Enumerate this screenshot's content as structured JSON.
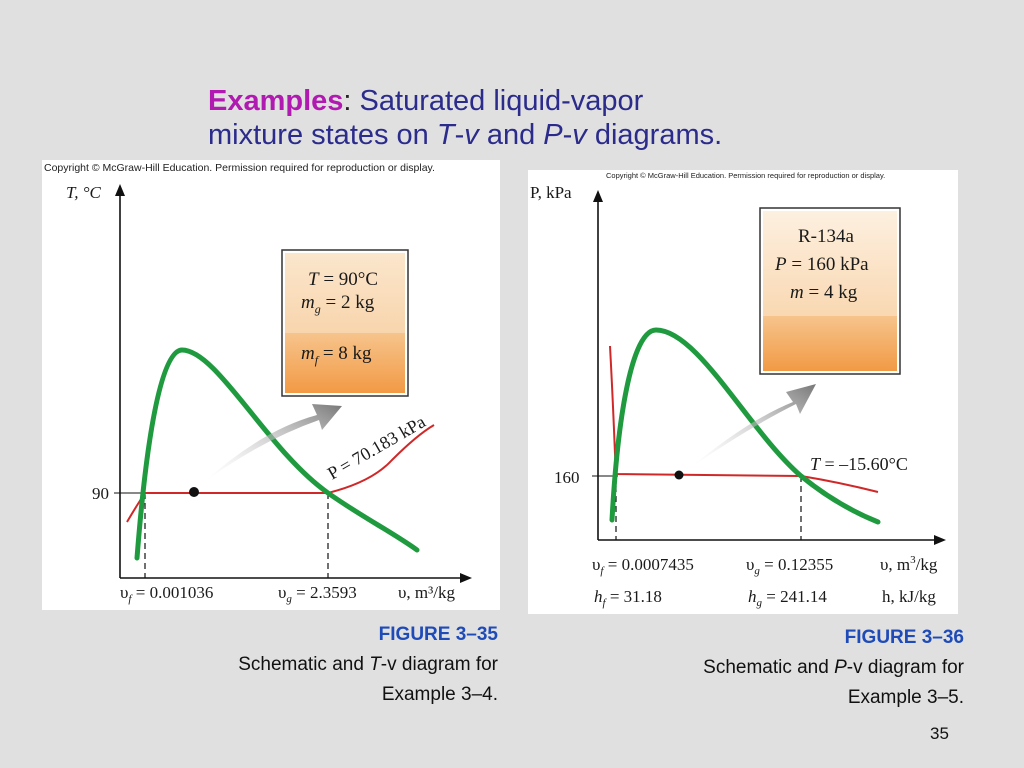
{
  "slide": {
    "title_keyword": "Examples",
    "title_colon": ":",
    "title_line1_rest": " Saturated liquid-vapor",
    "title_line2_a": "mixture states on ",
    "title_line2_T": "T",
    "title_line2_dash1": "-",
    "title_line2_v1": "v",
    "title_line2_b": " and ",
    "title_line2_P": "P",
    "title_line2_dash2": "-",
    "title_line2_v2": "v",
    "title_line2_c": " diagrams.",
    "page_number": "35"
  },
  "figure_left": {
    "copyright": "Copyright © McGraw-Hill Education. Permission required for reproduction or display.",
    "y_axis_label": "T, °C",
    "x_axis_label": "υ, m³/kg",
    "y_tick": "90",
    "box_T": "T = 90°C",
    "box_mg": "m",
    "box_mg_sub": "g",
    "box_mg_val": " = 2 kg",
    "box_mf": "m",
    "box_mf_sub": "f",
    "box_mf_val": " = 8 kg",
    "isobar_label": "P = 70.183 kPa",
    "vf_label": "υ",
    "vf_sub": "f",
    "vf_val": " = 0.001036",
    "vg_label": "υ",
    "vg_sub": "g",
    "vg_val": " = 2.3593",
    "caption_figure": "FIGURE 3–35",
    "caption_line1_a": "Schematic and ",
    "caption_line1_T": "T",
    "caption_line1_b": "-v diagram for",
    "caption_line2": "Example 3–4.",
    "colors": {
      "dome": "#1f9a3f",
      "isobar": "#d02828",
      "box_fill": "#f5a855",
      "arrow": "#888888"
    }
  },
  "figure_right": {
    "copyright": "Copyright © McGraw-Hill Education. Permission required for reproduction or display.",
    "y_axis_label": "P, kPa",
    "x_axis_label_v": "υ, m",
    "x_axis_label_v_sup": "3",
    "x_axis_label_v_end": "/kg",
    "x_axis_label_h": "h, kJ/kg",
    "y_tick": "160",
    "box_substance": "R-134a",
    "box_P": "P = 160 kPa",
    "box_m": "m = 4 kg",
    "isotherm_label": "T = –15.60°C",
    "vf_label": "υ",
    "vf_sub": "f",
    "vf_val": " = 0.0007435",
    "vg_label": "υ",
    "vg_sub": "g",
    "vg_val": " = 0.12355",
    "hf_label": "h",
    "hf_sub": "f",
    "hf_val": " = 31.18",
    "hg_label": "h",
    "hg_sub": "g",
    "hg_val": " = 241.14",
    "caption_figure": "FIGURE 3–36",
    "caption_line1_a": "Schematic and ",
    "caption_line1_P": "P",
    "caption_line1_b": "-v diagram for",
    "caption_line2": "Example 3–5."
  }
}
